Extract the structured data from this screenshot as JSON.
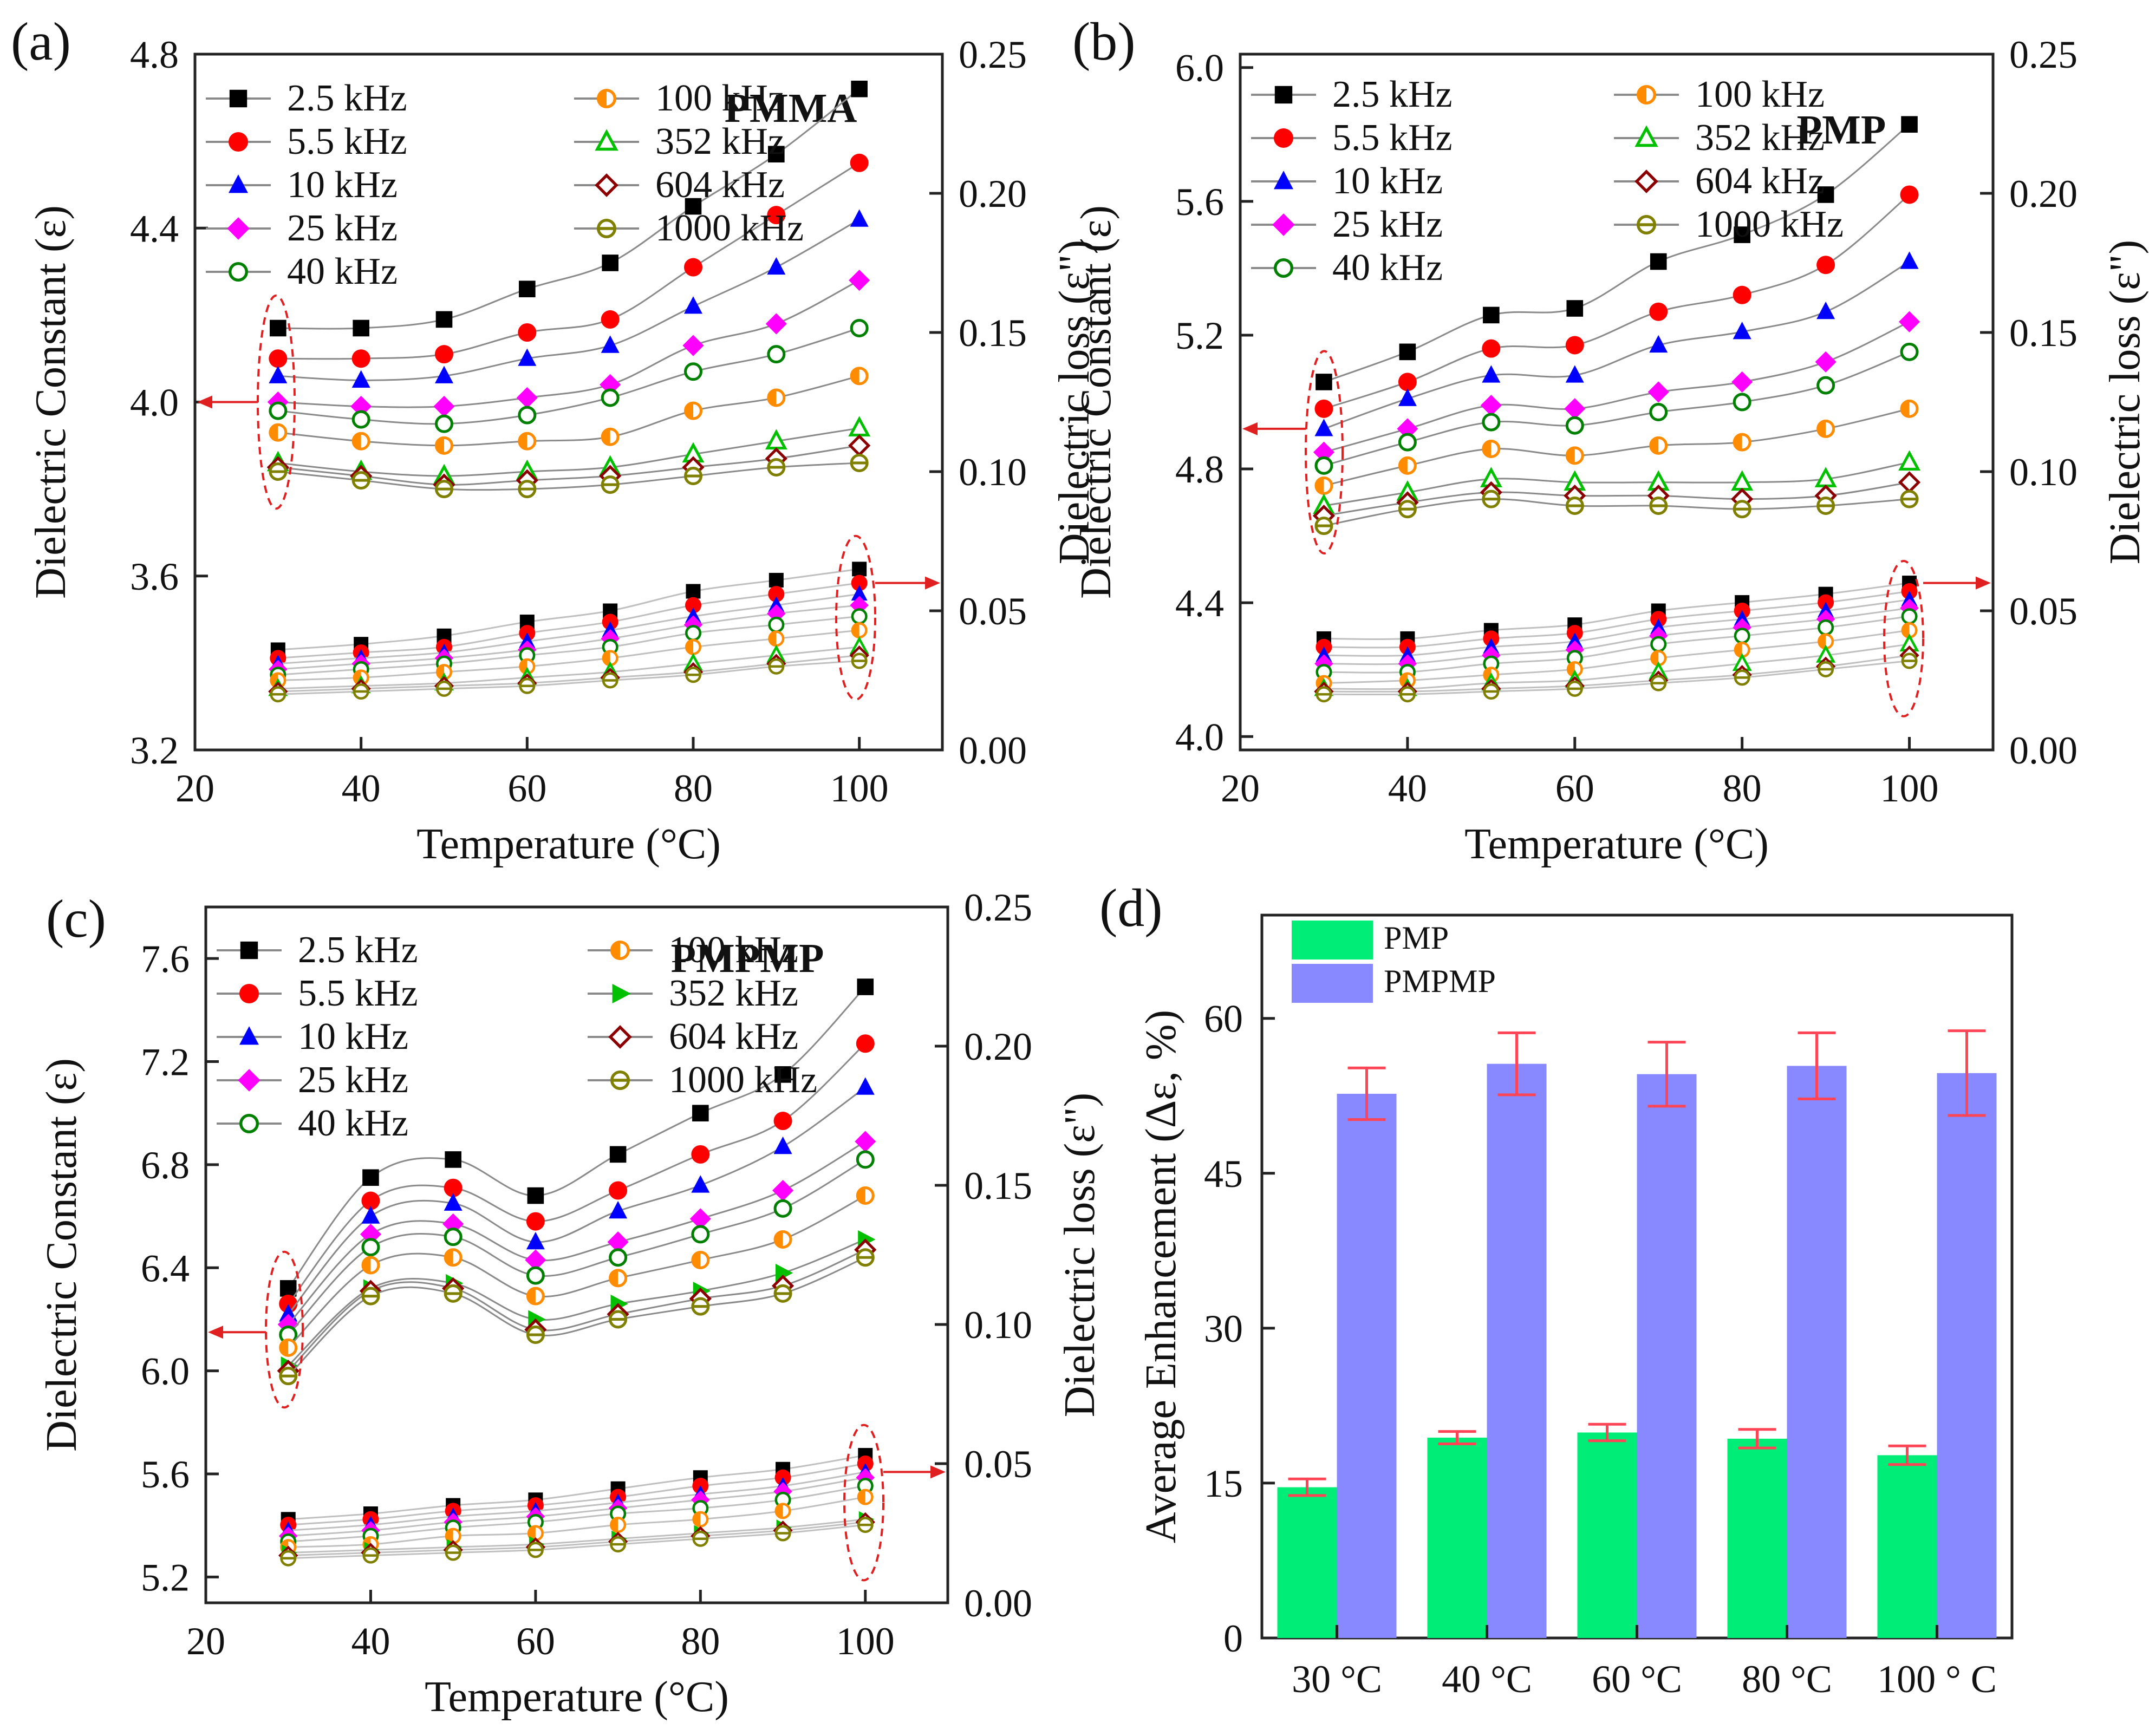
{
  "figure": {
    "panels": [
      {
        "id": "a",
        "label": "(a)",
        "material": "PMMA",
        "xlabel": "Temperature (°C)",
        "ylabel_left": "Dielectric Constant (ε)",
        "ylabel_right": "Dielectric loss (ε\")",
        "x_ticks": [
          "20",
          "40",
          "60",
          "80",
          "100"
        ],
        "y_left_ticks": [
          "3.2",
          "3.6",
          "4.0",
          "4.4",
          "4.8"
        ],
        "y_right_ticks": [
          "0.00",
          "0.05",
          "0.10",
          "0.15",
          "0.20",
          "0.25"
        ]
      },
      {
        "id": "b",
        "label": "(b)",
        "material": "PMP",
        "xlabel": "Temperature (°C)",
        "ylabel_left": "Dielectric Constant (ε)",
        "ylabel_right": "Dielectric loss (ε\")",
        "x_ticks": [
          "20",
          "40",
          "60",
          "80",
          "100"
        ],
        "y_left_ticks": [
          "4.0",
          "4.4",
          "4.8",
          "5.2",
          "5.6",
          "6.0"
        ],
        "y_right_ticks": [
          "0.00",
          "0.05",
          "0.10",
          "0.15",
          "0.20",
          "0.25"
        ]
      },
      {
        "id": "c",
        "label": "(c)",
        "material": "PMPMP",
        "xlabel": "Temperature (°C)",
        "ylabel_left": "Dielectric Constant (ε)",
        "ylabel_right": "Dielectric loss (ε\")",
        "x_ticks": [
          "20",
          "40",
          "60",
          "80",
          "100"
        ],
        "y_left_ticks": [
          "5.2",
          "5.6",
          "6.0",
          "6.4",
          "6.8",
          "7.2",
          "7.6"
        ],
        "y_right_ticks": [
          "0.00",
          "0.05",
          "0.10",
          "0.15",
          "0.20",
          "0.25"
        ]
      },
      {
        "id": "d",
        "label": "(d)",
        "ylabel": "Average Enhancement (Δε, %)",
        "y_ticks": [
          "0",
          "15",
          "30",
          "45",
          "60"
        ]
      }
    ]
  },
  "chart_data": [
    {
      "type": "line",
      "panel": "a",
      "title": "PMMA",
      "xlabel": "Temperature (°C)",
      "ylabel": "Dielectric Constant (ε)",
      "y2label": "Dielectric loss (ε\")",
      "xlim": [
        20,
        110
      ],
      "ylim": [
        3.2,
        4.8
      ],
      "y2lim": [
        0.0,
        0.25
      ],
      "x": [
        30,
        40,
        50,
        60,
        70,
        80,
        90,
        100
      ],
      "series": [
        {
          "name": "2.5 kHz",
          "eps": [
            4.17,
            4.17,
            4.19,
            4.26,
            4.32,
            4.45,
            4.57,
            4.72
          ],
          "loss": [
            0.036,
            0.038,
            0.041,
            0.046,
            0.05,
            0.057,
            0.061,
            0.065
          ]
        },
        {
          "name": "5.5 kHz",
          "eps": [
            4.1,
            4.1,
            4.11,
            4.16,
            4.19,
            4.31,
            4.43,
            4.55
          ],
          "loss": [
            0.033,
            0.035,
            0.037,
            0.042,
            0.046,
            0.052,
            0.056,
            0.06
          ]
        },
        {
          "name": "10 kHz",
          "eps": [
            4.06,
            4.05,
            4.06,
            4.1,
            4.13,
            4.22,
            4.31,
            4.42
          ],
          "loss": [
            0.031,
            0.033,
            0.035,
            0.039,
            0.043,
            0.048,
            0.052,
            0.056
          ]
        },
        {
          "name": "25 kHz",
          "eps": [
            4.0,
            3.99,
            3.99,
            4.01,
            4.04,
            4.13,
            4.18,
            4.28
          ],
          "loss": [
            0.029,
            0.031,
            0.033,
            0.036,
            0.04,
            0.045,
            0.049,
            0.052
          ]
        },
        {
          "name": "40 kHz",
          "eps": [
            3.98,
            3.96,
            3.95,
            3.97,
            4.01,
            4.07,
            4.11,
            4.17
          ],
          "loss": [
            0.027,
            0.029,
            0.031,
            0.034,
            0.037,
            0.042,
            0.045,
            0.048
          ]
        },
        {
          "name": "100 kHz",
          "eps": [
            3.93,
            3.91,
            3.9,
            3.91,
            3.92,
            3.98,
            4.01,
            4.06
          ],
          "loss": [
            0.025,
            0.026,
            0.028,
            0.03,
            0.033,
            0.037,
            0.04,
            0.043
          ]
        },
        {
          "name": "352 kHz",
          "eps": [
            3.86,
            3.84,
            3.83,
            3.84,
            3.85,
            3.88,
            3.91,
            3.94
          ],
          "loss": [
            0.022,
            0.023,
            0.024,
            0.026,
            0.028,
            0.031,
            0.034,
            0.037
          ]
        },
        {
          "name": "604 kHz",
          "eps": [
            3.85,
            3.83,
            3.81,
            3.82,
            3.83,
            3.85,
            3.87,
            3.9
          ],
          "loss": [
            0.021,
            0.022,
            0.023,
            0.024,
            0.026,
            0.028,
            0.031,
            0.034
          ]
        },
        {
          "name": "1000 kHz",
          "eps": [
            3.84,
            3.82,
            3.8,
            3.8,
            3.81,
            3.83,
            3.85,
            3.86
          ],
          "loss": [
            0.02,
            0.021,
            0.022,
            0.023,
            0.025,
            0.027,
            0.03,
            0.032
          ]
        }
      ]
    },
    {
      "type": "line",
      "panel": "b",
      "title": "PMP",
      "xlabel": "Temperature (°C)",
      "ylabel": "Dielectric Constant (ε)",
      "y2label": "Dielectric loss (ε\")",
      "xlim": [
        20,
        110
      ],
      "ylim": [
        3.96,
        6.04
      ],
      "y2lim": [
        0.0,
        0.25
      ],
      "x": [
        30,
        40,
        50,
        60,
        70,
        80,
        90,
        100
      ],
      "series": [
        {
          "name": "2.5 kHz",
          "eps": [
            5.06,
            5.15,
            5.26,
            5.28,
            5.42,
            5.5,
            5.62,
            5.83
          ],
          "loss": [
            0.04,
            0.04,
            0.043,
            0.045,
            0.05,
            0.053,
            0.056,
            0.06
          ]
        },
        {
          "name": "5.5 kHz",
          "eps": [
            4.98,
            5.06,
            5.16,
            5.17,
            5.27,
            5.32,
            5.41,
            5.62
          ],
          "loss": [
            0.037,
            0.037,
            0.04,
            0.042,
            0.047,
            0.05,
            0.053,
            0.057
          ]
        },
        {
          "name": "10 kHz",
          "eps": [
            4.92,
            5.01,
            5.08,
            5.08,
            5.17,
            5.21,
            5.27,
            5.42
          ],
          "loss": [
            0.034,
            0.034,
            0.037,
            0.039,
            0.044,
            0.047,
            0.05,
            0.054
          ]
        },
        {
          "name": "25 kHz",
          "eps": [
            4.85,
            4.92,
            4.99,
            4.98,
            5.03,
            5.06,
            5.12,
            5.24
          ],
          "loss": [
            0.031,
            0.031,
            0.034,
            0.036,
            0.041,
            0.044,
            0.047,
            0.051
          ]
        },
        {
          "name": "40 kHz",
          "eps": [
            4.81,
            4.88,
            4.94,
            4.93,
            4.97,
            5.0,
            5.05,
            5.15
          ],
          "loss": [
            0.028,
            0.028,
            0.031,
            0.033,
            0.038,
            0.041,
            0.044,
            0.048
          ]
        },
        {
          "name": "100 kHz",
          "eps": [
            4.75,
            4.81,
            4.86,
            4.84,
            4.87,
            4.88,
            4.92,
            4.98
          ],
          "loss": [
            0.024,
            0.025,
            0.027,
            0.029,
            0.033,
            0.036,
            0.039,
            0.043
          ]
        },
        {
          "name": "352 kHz",
          "eps": [
            4.69,
            4.73,
            4.77,
            4.76,
            4.76,
            4.76,
            4.77,
            4.82
          ],
          "loss": [
            0.022,
            0.022,
            0.024,
            0.025,
            0.028,
            0.031,
            0.034,
            0.038
          ]
        },
        {
          "name": "604 kHz",
          "eps": [
            4.66,
            4.7,
            4.73,
            4.72,
            4.72,
            4.71,
            4.72,
            4.76
          ],
          "loss": [
            0.021,
            0.021,
            0.022,
            0.023,
            0.025,
            0.027,
            0.03,
            0.034
          ]
        },
        {
          "name": "1000 kHz",
          "eps": [
            4.63,
            4.68,
            4.71,
            4.69,
            4.69,
            4.68,
            4.69,
            4.71
          ],
          "loss": [
            0.02,
            0.02,
            0.021,
            0.022,
            0.024,
            0.026,
            0.029,
            0.032
          ]
        }
      ]
    },
    {
      "type": "line",
      "panel": "c",
      "title": "PMPMP",
      "xlabel": "Temperature (°C)",
      "ylabel": "Dielectric Constant (ε)",
      "y2label": "Dielectric loss (ε\")",
      "xlim": [
        20,
        110
      ],
      "ylim": [
        5.1,
        7.8
      ],
      "y2lim": [
        0.0,
        0.25
      ],
      "x": [
        30,
        40,
        50,
        60,
        70,
        80,
        90,
        100
      ],
      "series": [
        {
          "name": "2.5 kHz",
          "eps": [
            6.32,
            6.75,
            6.82,
            6.68,
            6.84,
            7.0,
            7.15,
            7.49
          ],
          "loss": [
            0.03,
            0.032,
            0.035,
            0.037,
            0.041,
            0.045,
            0.048,
            0.053
          ]
        },
        {
          "name": "5.5 kHz",
          "eps": [
            6.26,
            6.66,
            6.71,
            6.58,
            6.7,
            6.84,
            6.97,
            7.27
          ],
          "loss": [
            0.028,
            0.03,
            0.033,
            0.035,
            0.038,
            0.042,
            0.045,
            0.05
          ]
        },
        {
          "name": "10 kHz",
          "eps": [
            6.22,
            6.6,
            6.65,
            6.5,
            6.62,
            6.72,
            6.87,
            7.1
          ],
          "loss": [
            0.026,
            0.028,
            0.031,
            0.033,
            0.036,
            0.039,
            0.042,
            0.047
          ]
        },
        {
          "name": "25 kHz",
          "eps": [
            6.18,
            6.53,
            6.57,
            6.43,
            6.5,
            6.59,
            6.7,
            6.89
          ],
          "loss": [
            0.024,
            0.026,
            0.029,
            0.031,
            0.034,
            0.037,
            0.04,
            0.045
          ]
        },
        {
          "name": "40 kHz",
          "eps": [
            6.14,
            6.48,
            6.52,
            6.37,
            6.44,
            6.53,
            6.63,
            6.82
          ],
          "loss": [
            0.022,
            0.024,
            0.027,
            0.029,
            0.032,
            0.034,
            0.037,
            0.042
          ]
        },
        {
          "name": "100 kHz",
          "eps": [
            6.09,
            6.41,
            6.44,
            6.29,
            6.36,
            6.43,
            6.51,
            6.68
          ],
          "loss": [
            0.02,
            0.021,
            0.024,
            0.025,
            0.028,
            0.03,
            0.033,
            0.038
          ]
        },
        {
          "name": "352 kHz",
          "eps": [
            6.02,
            6.32,
            6.34,
            6.2,
            6.26,
            6.31,
            6.38,
            6.51
          ],
          "loss": [
            0.018,
            0.019,
            0.02,
            0.021,
            0.023,
            0.025,
            0.027,
            0.03
          ]
        },
        {
          "name": "604 kHz",
          "eps": [
            6.0,
            6.31,
            6.32,
            6.16,
            6.22,
            6.28,
            6.33,
            6.47
          ],
          "loss": [
            0.017,
            0.018,
            0.019,
            0.02,
            0.022,
            0.024,
            0.026,
            0.029
          ]
        },
        {
          "name": "1000 kHz",
          "eps": [
            5.98,
            6.29,
            6.3,
            6.14,
            6.2,
            6.25,
            6.3,
            6.44
          ],
          "loss": [
            0.016,
            0.017,
            0.018,
            0.019,
            0.021,
            0.023,
            0.025,
            0.028
          ]
        }
      ]
    },
    {
      "type": "bar",
      "panel": "d",
      "title": "",
      "xlabel": "",
      "ylabel": "Average Enhancement (Δε, %)",
      "ylim": [
        0,
        70
      ],
      "categories": [
        "30 °C",
        "40 °C",
        "60 °C",
        "80 °C",
        "100 ° C"
      ],
      "series": [
        {
          "name": "PMP",
          "values": [
            14.6,
            19.4,
            19.9,
            19.3,
            17.7
          ],
          "errors": [
            0.8,
            0.6,
            0.8,
            0.9,
            0.9
          ]
        },
        {
          "name": "PMPMP",
          "values": [
            52.7,
            55.6,
            54.6,
            55.4,
            54.7
          ],
          "errors": [
            2.5,
            3.0,
            3.1,
            3.2,
            4.1
          ]
        }
      ]
    }
  ],
  "style": {
    "series_colors": [
      "#000000",
      "#ff0000",
      "#0000ff",
      "#ff00ff",
      "#008000",
      "#ff8c00",
      "#00c000",
      "#8b0000",
      "#808000"
    ],
    "line_color_constant": "#8a8a8a",
    "line_color_loss": "#c0c0c0",
    "annotation_color": "#e02020",
    "bar_pmp": "#00ee77",
    "bar_pmpmp": "#8888ff",
    "error_bar": "#ff4455"
  }
}
